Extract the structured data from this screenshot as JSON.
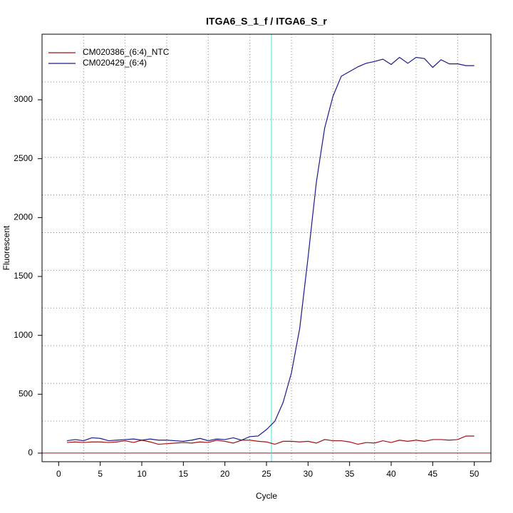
{
  "chart_data": {
    "type": "line",
    "title": "ITGA6_S_1_f / ITGA6_S_r",
    "xlabel": "Cycle",
    "ylabel": "Fluorescent",
    "x": [
      1,
      2,
      3,
      4,
      5,
      6,
      7,
      8,
      9,
      10,
      11,
      12,
      13,
      14,
      15,
      16,
      17,
      18,
      19,
      20,
      21,
      22,
      23,
      24,
      25,
      26,
      27,
      28,
      29,
      30,
      31,
      32,
      33,
      34,
      35,
      36,
      37,
      38,
      39,
      40,
      41,
      42,
      43,
      44,
      45,
      46,
      47,
      48,
      49,
      50
    ],
    "series": [
      {
        "name": "CM020386_(6:4)_NTC",
        "color": "#a01010",
        "values": [
          90,
          95,
          90,
          95,
          95,
          90,
          95,
          105,
          90,
          110,
          95,
          75,
          80,
          85,
          90,
          85,
          95,
          90,
          110,
          100,
          85,
          110,
          110,
          100,
          95,
          75,
          100,
          100,
          95,
          100,
          85,
          115,
          105,
          105,
          95,
          75,
          90,
          85,
          105,
          90,
          110,
          100,
          110,
          100,
          115,
          115,
          110,
          115,
          145,
          145
        ]
      },
      {
        "name": "CM020429_(6:4)",
        "color": "#1a1a8c",
        "values": [
          105,
          115,
          105,
          130,
          125,
          105,
          110,
          115,
          120,
          110,
          120,
          110,
          110,
          105,
          100,
          110,
          125,
          105,
          120,
          115,
          130,
          110,
          140,
          145,
          200,
          270,
          430,
          680,
          1060,
          1660,
          2300,
          2760,
          3030,
          3200,
          3240,
          3280,
          3310,
          3325,
          3345,
          3300,
          3360,
          3310,
          3360,
          3350,
          3275,
          3340,
          3305,
          3305,
          3290,
          3290
        ]
      }
    ],
    "xlim": [
      -2,
      52
    ],
    "ylim": [
      -73,
      3557
    ],
    "xticks": [
      0,
      5,
      10,
      15,
      20,
      25,
      30,
      35,
      40,
      45,
      50
    ],
    "yticks": [
      0,
      500,
      1000,
      1500,
      2000,
      2500,
      3000
    ],
    "xgrid": [
      3,
      8,
      13,
      18,
      23,
      28,
      33,
      38,
      43,
      48
    ],
    "ygrid": [
      272,
      592,
      912,
      1232,
      1552,
      1872,
      2192,
      2512,
      2832,
      3152
    ],
    "vline": {
      "value": 25.6,
      "color": "#40e0e0"
    },
    "hline": {
      "value": 0,
      "color": "#a01010"
    },
    "legend": "top-left"
  }
}
